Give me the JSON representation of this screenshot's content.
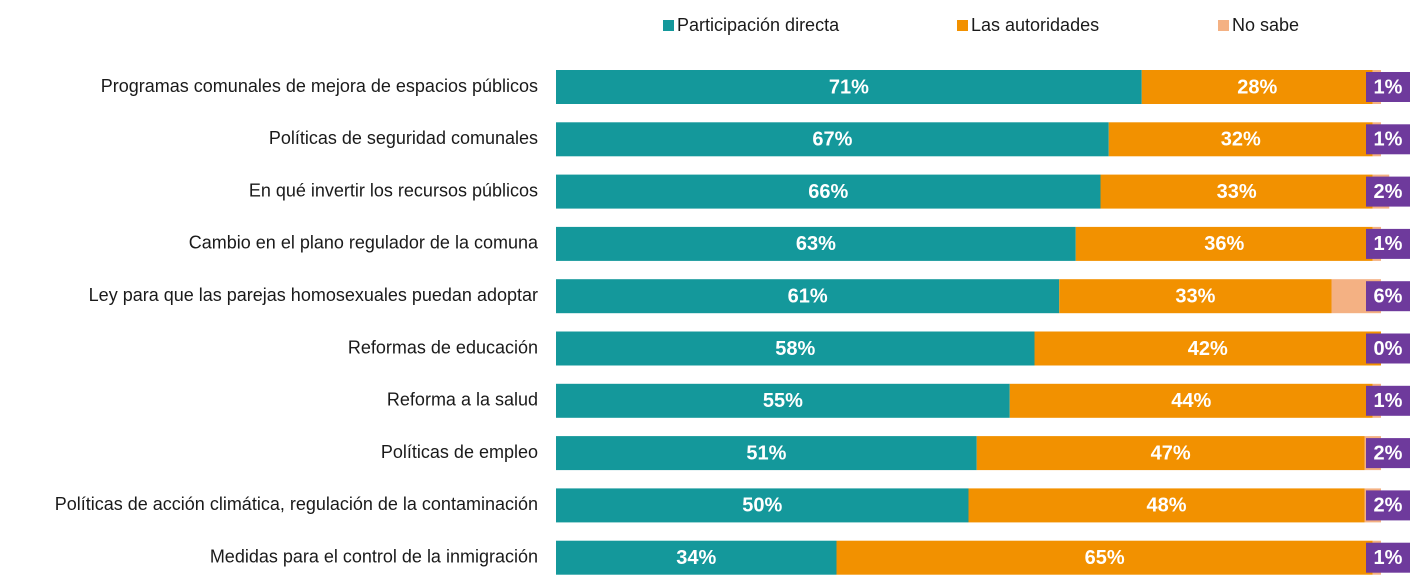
{
  "chart_data": {
    "type": "stacked-barh",
    "categories": [
      "Programas comunales de mejora de espacios públicos",
      "Políticas de seguridad comunales",
      "En qué invertir los recursos públicos",
      "Cambio en el plano regulador de la comuna",
      "Ley para que las parejas homosexuales puedan adoptar",
      "Reformas de educación",
      "Reforma a la salud",
      "Políticas de empleo",
      "Políticas de acción climática, regulación de la contaminación",
      "Medidas para el control de la inmigración"
    ],
    "series": [
      {
        "name": "Participación directa",
        "color": "#14989b",
        "values": [
          71,
          67,
          66,
          63,
          61,
          58,
          55,
          51,
          50,
          34
        ],
        "value_labels": [
          "71%",
          "67%",
          "66%",
          "63%",
          "61%",
          "58%",
          "55%",
          "51%",
          "50%",
          "34%"
        ]
      },
      {
        "name": "Las autoridades",
        "color": "#f29100",
        "values": [
          28,
          32,
          33,
          36,
          33,
          42,
          44,
          47,
          48,
          65
        ],
        "value_labels": [
          "28%",
          "32%",
          "33%",
          "36%",
          "33%",
          "42%",
          "44%",
          "47%",
          "48%",
          "65%"
        ]
      },
      {
        "name": "No sabe",
        "color": "#f4b183",
        "values": [
          1,
          1,
          2,
          1,
          6,
          0,
          1,
          2,
          2,
          1
        ],
        "value_labels": [
          "1%",
          "1%",
          "2%",
          "1%",
          "6%",
          "0%",
          "1%",
          "2%",
          "2%",
          "1%"
        ]
      }
    ],
    "xlim": [
      0,
      100
    ]
  }
}
